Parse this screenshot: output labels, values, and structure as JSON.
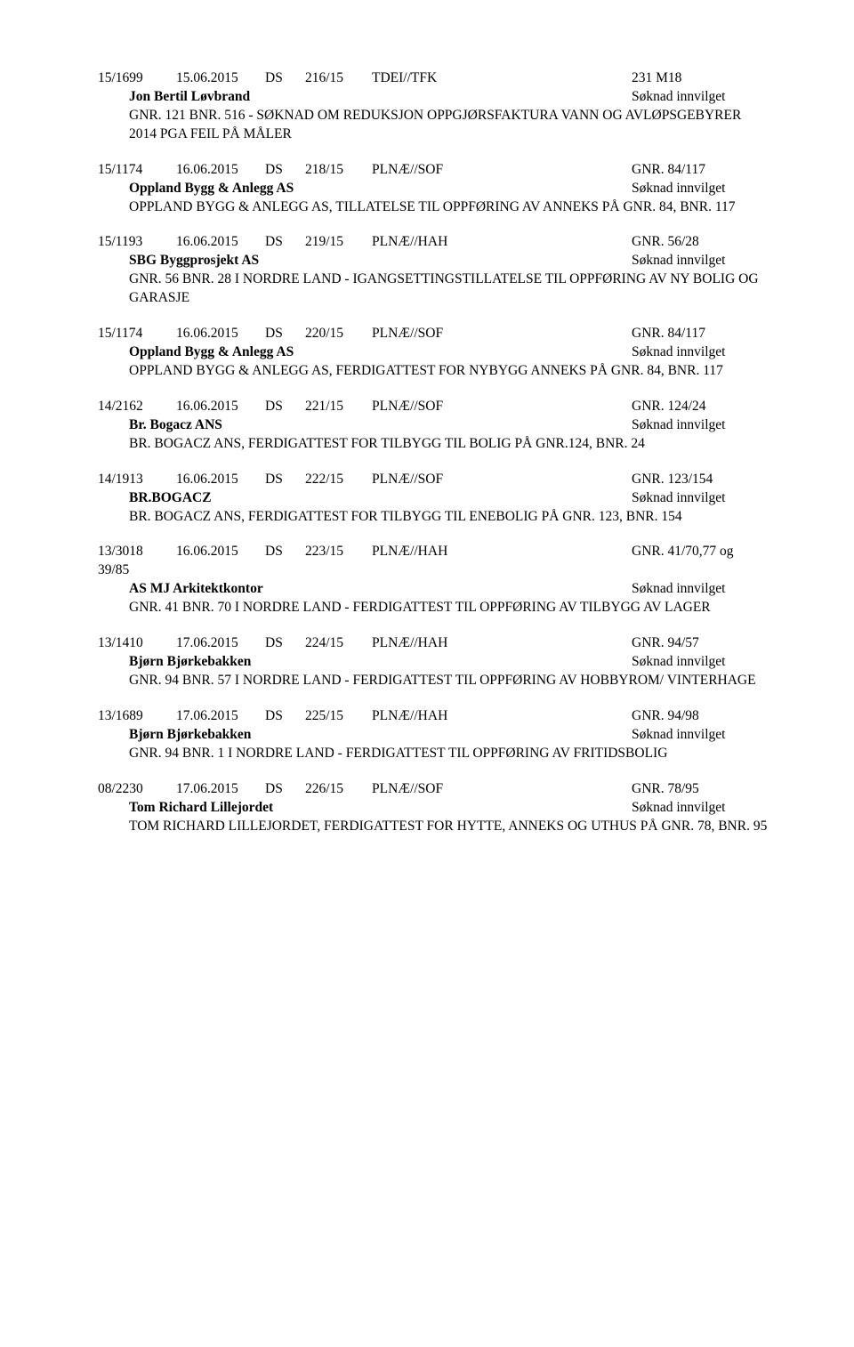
{
  "entries": [
    {
      "case": "15/1699",
      "date": "15.06.2015",
      "ds": "DS",
      "dsn": "216/15",
      "dept": "TDEI//TFK",
      "gnr": "231 M18",
      "party": "Jon Bertil Løvbrand",
      "status": "Søknad innvilget",
      "desc": "GNR. 121 BNR. 516 - SØKNAD OM REDUKSJON OPPGJØRSFAKTURA VANN OG AVLØPSGEBYRER 2014 PGA FEIL PÅ MÅLER",
      "subCase": ""
    },
    {
      "case": "15/1174",
      "date": "16.06.2015",
      "ds": "DS",
      "dsn": "218/15",
      "dept": "PLNÆ//SOF",
      "gnr": "GNR. 84/117",
      "party": "Oppland Bygg & Anlegg AS",
      "status": "Søknad innvilget",
      "desc": "OPPLAND BYGG & ANLEGG AS, TILLATELSE TIL OPPFØRING AV ANNEKS PÅ GNR. 84, BNR. 117",
      "subCase": ""
    },
    {
      "case": "15/1193",
      "date": "16.06.2015",
      "ds": "DS",
      "dsn": "219/15",
      "dept": "PLNÆ//HAH",
      "gnr": "GNR. 56/28",
      "party": "SBG Byggprosjekt AS",
      "status": "Søknad innvilget",
      "desc": "GNR. 56 BNR. 28 I NORDRE LAND - IGANGSETTINGSTILLATELSE TIL OPPFØRING AV NY BOLIG OG GARASJE",
      "subCase": ""
    },
    {
      "case": "15/1174",
      "date": "16.06.2015",
      "ds": "DS",
      "dsn": "220/15",
      "dept": "PLNÆ//SOF",
      "gnr": "GNR. 84/117",
      "party": "Oppland Bygg & Anlegg AS",
      "status": "Søknad innvilget",
      "desc": "OPPLAND BYGG & ANLEGG AS, FERDIGATTEST FOR NYBYGG ANNEKS PÅ GNR. 84, BNR. 117",
      "subCase": ""
    },
    {
      "case": "14/2162",
      "date": "16.06.2015",
      "ds": "DS",
      "dsn": "221/15",
      "dept": "PLNÆ//SOF",
      "gnr": "GNR. 124/24",
      "party": "Br. Bogacz ANS",
      "status": "Søknad innvilget",
      "desc": "BR. BOGACZ ANS, FERDIGATTEST FOR TILBYGG TIL BOLIG PÅ GNR.124, BNR. 24",
      "subCase": ""
    },
    {
      "case": "14/1913",
      "date": "16.06.2015",
      "ds": "DS",
      "dsn": "222/15",
      "dept": "PLNÆ//SOF",
      "gnr": "GNR. 123/154",
      "party": "BR.BOGACZ",
      "status": "Søknad innvilget",
      "desc": "BR. BOGACZ ANS, FERDIGATTEST FOR TILBYGG TIL ENEBOLIG PÅ GNR. 123, BNR. 154",
      "subCase": ""
    },
    {
      "case": "13/3018",
      "date": "16.06.2015",
      "ds": "DS",
      "dsn": "223/15",
      "dept": "PLNÆ//HAH",
      "gnr": "GNR. 41/70,77 og",
      "party": "AS MJ Arkitektkontor",
      "status": "Søknad innvilget",
      "desc": "GNR. 41 BNR. 70 I NORDRE LAND - FERDIGATTEST TIL OPPFØRING AV TILBYGG AV LAGER",
      "subCase": "39/85"
    },
    {
      "case": "13/1410",
      "date": "17.06.2015",
      "ds": "DS",
      "dsn": "224/15",
      "dept": "PLNÆ//HAH",
      "gnr": "GNR. 94/57",
      "party": "Bjørn Bjørkebakken",
      "status": "Søknad innvilget",
      "desc": "GNR. 94 BNR. 57 I NORDRE LAND - FERDIGATTEST TIL OPPFØRING AV HOBBYROM/ VINTERHAGE",
      "subCase": ""
    },
    {
      "case": "13/1689",
      "date": "17.06.2015",
      "ds": "DS",
      "dsn": "225/15",
      "dept": "PLNÆ//HAH",
      "gnr": "GNR. 94/98",
      "party": "Bjørn Bjørkebakken",
      "status": "Søknad innvilget",
      "desc": "GNR. 94 BNR. 1 I NORDRE LAND - FERDIGATTEST TIL OPPFØRING AV FRITIDSBOLIG",
      "subCase": ""
    },
    {
      "case": "08/2230",
      "date": "17.06.2015",
      "ds": "DS",
      "dsn": "226/15",
      "dept": "PLNÆ//SOF",
      "gnr": "GNR. 78/95",
      "party": "Tom Richard Lillejordet",
      "status": "Søknad innvilget",
      "desc": "TOM RICHARD LILLEJORDET, FERDIGATTEST FOR HYTTE, ANNEKS OG UTHUS PÅ GNR. 78, BNR. 95",
      "subCase": ""
    }
  ]
}
